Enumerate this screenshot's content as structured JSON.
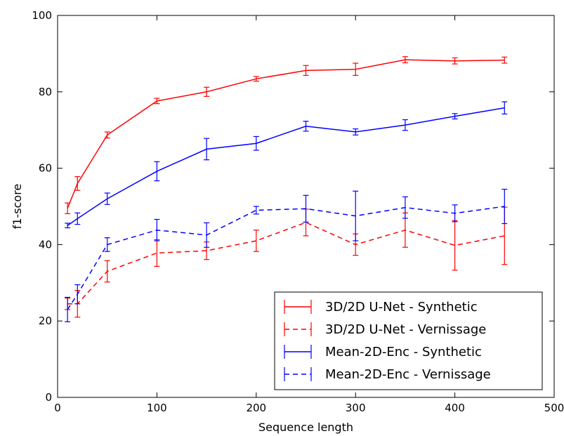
{
  "chart_data": {
    "type": "line",
    "xlabel": "Sequence length",
    "ylabel": "f1-score",
    "xlim": [
      0,
      500
    ],
    "ylim": [
      0,
      100
    ],
    "xticks": [
      0,
      100,
      200,
      300,
      400,
      500
    ],
    "yticks": [
      0,
      20,
      40,
      60,
      80,
      100
    ],
    "grid": false,
    "legend_position": "lower-right",
    "x": [
      10,
      20,
      50,
      100,
      150,
      200,
      250,
      300,
      350,
      400,
      450
    ],
    "series": [
      {
        "name": "3D/2D U-Net - Synthetic",
        "color": "#ff0000",
        "linestyle": "solid",
        "values": [
          49.5,
          56.0,
          68.7,
          77.6,
          80.0,
          83.4,
          85.6,
          85.9,
          88.4,
          88.1,
          88.3
        ],
        "errors": [
          1.4,
          1.8,
          0.8,
          0.7,
          1.2,
          0.6,
          1.3,
          1.6,
          0.8,
          0.8,
          0.8
        ]
      },
      {
        "name": "3D/2D U-Net - Vernissage",
        "color": "#ff0000",
        "linestyle": "dashed",
        "values": [
          24.5,
          24.5,
          33.0,
          37.8,
          38.4,
          41.0,
          45.8,
          40.0,
          43.8,
          39.8,
          42.3
        ],
        "errors": [
          1.5,
          3.5,
          2.8,
          3.5,
          2.3,
          2.8,
          3.5,
          2.8,
          4.5,
          6.5,
          7.5
        ]
      },
      {
        "name": "Mean-2D-Enc - Synthetic",
        "color": "#0000ff",
        "linestyle": "solid",
        "values": [
          45.0,
          46.8,
          52.0,
          59.2,
          65.0,
          66.5,
          71.0,
          69.5,
          71.3,
          73.6,
          75.8
        ],
        "errors": [
          0.6,
          1.5,
          1.5,
          2.5,
          2.8,
          1.8,
          1.3,
          0.8,
          1.4,
          0.7,
          1.6
        ]
      },
      {
        "name": "Mean-2D-Enc - Vernissage",
        "color": "#0000ff",
        "linestyle": "dashed",
        "values": [
          23.0,
          27.0,
          40.0,
          43.8,
          42.5,
          49.0,
          49.4,
          47.5,
          49.7,
          48.2,
          50.0
        ],
        "errors": [
          3.2,
          2.5,
          1.8,
          2.8,
          3.2,
          1.0,
          3.5,
          6.5,
          2.8,
          2.2,
          4.5
        ]
      }
    ]
  }
}
